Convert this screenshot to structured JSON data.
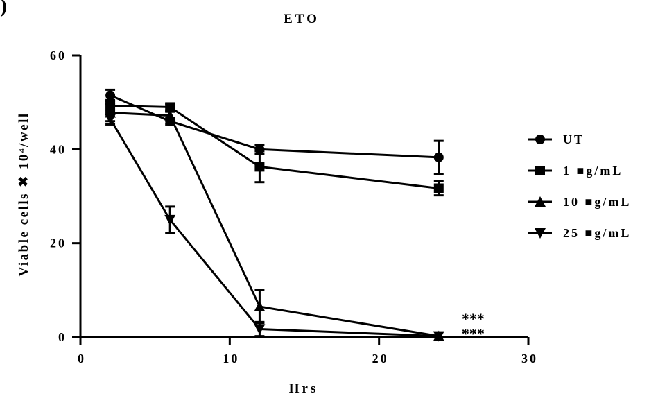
{
  "panel_label": ")",
  "chart_data": {
    "type": "line",
    "title": "ETO",
    "xlabel": "Hrs",
    "ylabel": "Viable cells ✖ 10⁴/well",
    "xlim": [
      0,
      30
    ],
    "ylim": [
      0,
      60
    ],
    "x_ticks": [
      0,
      10,
      20,
      30
    ],
    "y_ticks": [
      0,
      20,
      40,
      60
    ],
    "x_tick_labels": [
      "0",
      "10",
      "20",
      "30"
    ],
    "y_tick_labels": [
      "0",
      "20",
      "40",
      "60"
    ],
    "grid": false,
    "legend_position": "right",
    "x": [
      2,
      6,
      12,
      24
    ],
    "series": [
      {
        "name": "UT",
        "marker": "circle",
        "values": [
          51.5,
          46,
          40,
          38.3
        ],
        "errors": [
          1.2,
          0.7,
          1.0,
          3.5
        ]
      },
      {
        "name": "1 ■g/mL",
        "marker": "square",
        "values": [
          49.3,
          49,
          36.3,
          31.7
        ],
        "errors": [
          1.2,
          0.7,
          3.3,
          1.5
        ]
      },
      {
        "name": "10 ■g/mL",
        "marker": "triangle-up",
        "values": [
          47.8,
          47.2,
          6.5,
          0.2
        ],
        "errors": [
          1.8,
          0.8,
          3.5,
          0.3
        ]
      },
      {
        "name": "25 ■g/mL",
        "marker": "triangle-down",
        "values": [
          46.5,
          25,
          1.7,
          0.2
        ],
        "errors": [
          1.2,
          2.8,
          1.5,
          0.3
        ]
      }
    ],
    "annotations": [
      {
        "text": "***",
        "x": 26.3,
        "y": 4
      },
      {
        "text": "***",
        "x": 26.3,
        "y": 0.8
      }
    ],
    "colors": {
      "ink": "#000000",
      "background": "#ffffff"
    }
  }
}
